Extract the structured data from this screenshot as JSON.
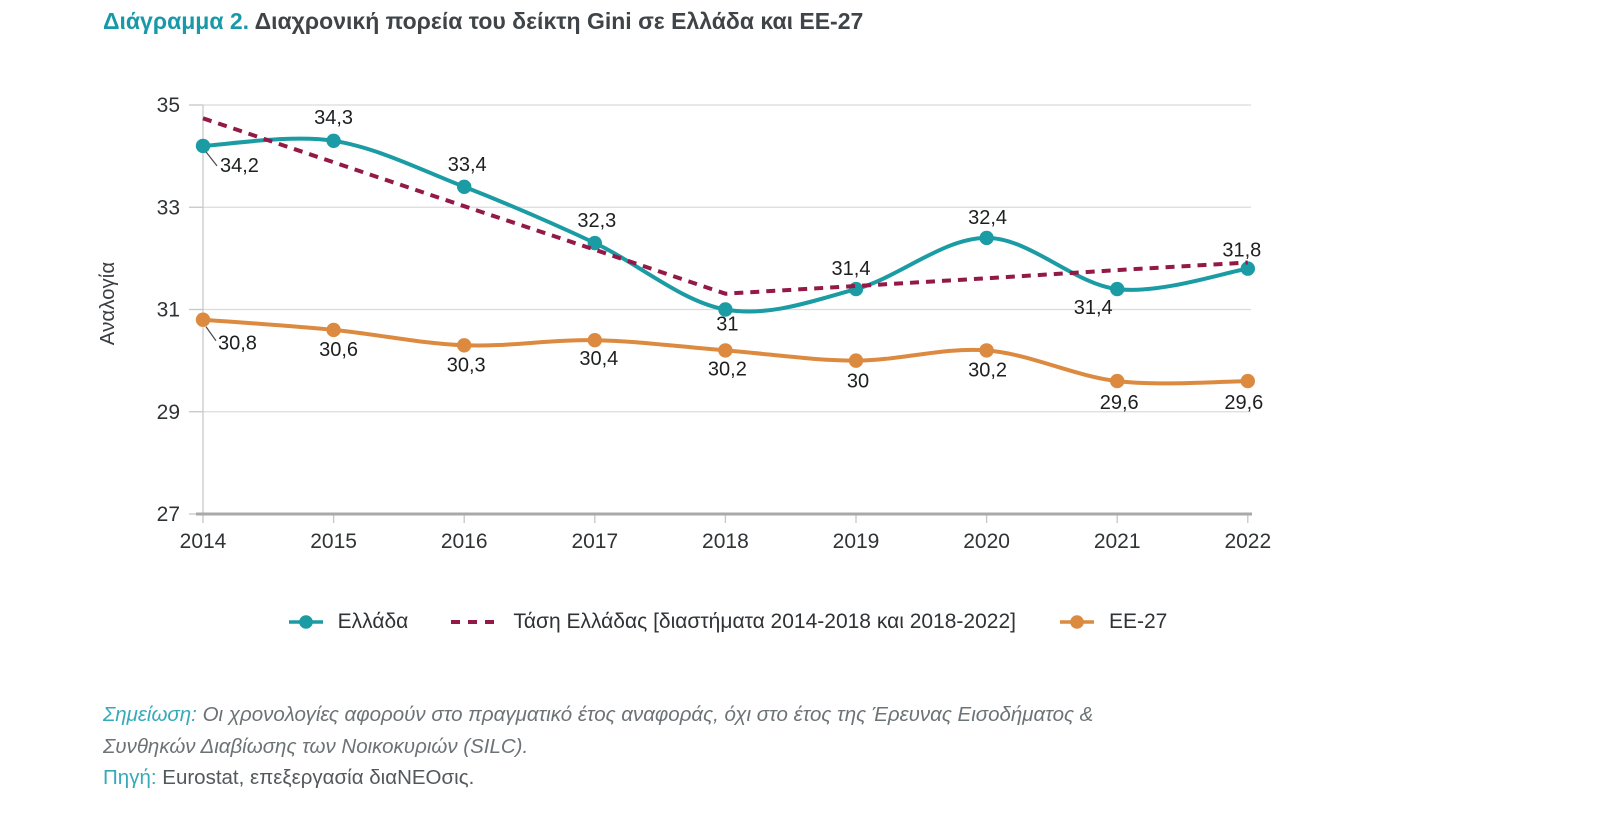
{
  "title": {
    "label": "Διάγραμμα 2.",
    "text": "Διαχρονική πορεία του δείκτη Gini σε Ελλάδα και ΕΕ-27"
  },
  "chart_data": {
    "type": "line",
    "x": [
      2014,
      2015,
      2016,
      2017,
      2018,
      2019,
      2020,
      2021,
      2022
    ],
    "xlabel": "",
    "ylabel": "Αναλογία",
    "ylim": [
      27,
      35
    ],
    "yticks": [
      27,
      29,
      31,
      33,
      35
    ],
    "grid": true,
    "legend_position": "bottom",
    "series": [
      {
        "name": "Ελλάδα",
        "color": "#1B9CA4",
        "dash": false,
        "markers": true,
        "smooth": true,
        "values": [
          34.2,
          34.3,
          33.4,
          32.3,
          31.0,
          31.4,
          32.4,
          31.4,
          31.8
        ],
        "labels": [
          "34,2",
          "34,3",
          "33,4",
          "32,3",
          "31",
          "31,4",
          "32,4",
          "31,4",
          "31,8"
        ]
      },
      {
        "name": "Τάση Ελλάδας [διαστήματα 2014-2018 και 2018-2022]",
        "color": "#931947",
        "dash": true,
        "markers": false,
        "smooth": false,
        "values": [
          34.74,
          33.88,
          33.02,
          32.17,
          31.31,
          31.46,
          31.61,
          31.77,
          31.92
        ],
        "labels": []
      },
      {
        "name": "ΕΕ-27",
        "color": "#DC8A40",
        "dash": false,
        "markers": true,
        "smooth": true,
        "values": [
          30.8,
          30.6,
          30.3,
          30.4,
          30.2,
          30.0,
          30.2,
          29.6,
          29.6
        ],
        "labels": [
          "30,8",
          "30,6",
          "30,3",
          "30,4",
          "30,2",
          "30",
          "30,2",
          "29,6",
          "29,6"
        ]
      }
    ]
  },
  "note": {
    "label": "Σημείωση:",
    "line1": "Οι χρονολογίες αφορούν στο πραγματικό έτος αναφοράς, όχι στο έτος της Έρευνας Εισοδήματος &",
    "line2": "Συνθηκών Διαβίωσης των Νοικοκυριών (SILC)."
  },
  "source": {
    "label": "Πηγή:",
    "text": "Eurostat, επεξεργασία διαΝΕΟσις."
  },
  "colors": {
    "accent_teal": "#1899A9",
    "greece_line": "#1B9CA4",
    "trend_line": "#931947",
    "eu_line": "#DC8A40",
    "title_text": "#3F4448",
    "axis_text": "#2F3336",
    "data_label_text": "#1D1F20",
    "note_text": "#6C7376",
    "gridline": "#DBDBDB",
    "axis_line": "#A9A9A9"
  }
}
